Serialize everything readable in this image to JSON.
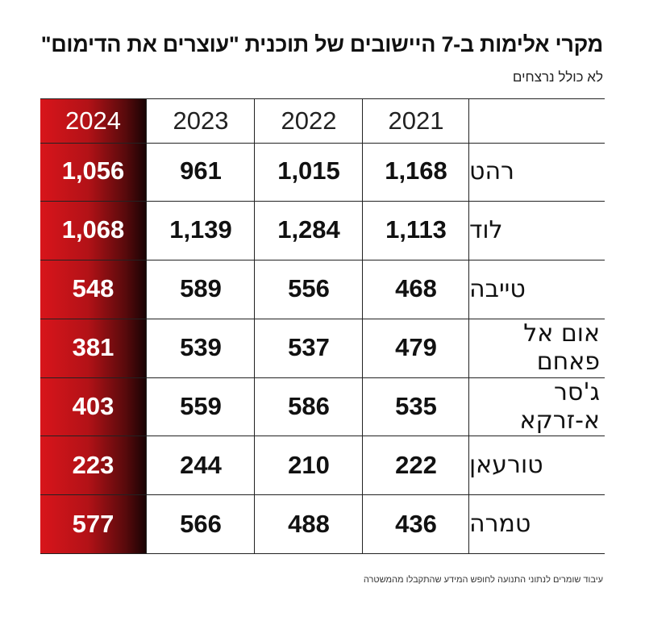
{
  "title": "מקרי אלימות ב-7 היישובים של תוכנית \"עוצרים את הדימום\"",
  "subtitle": "לא כולל נרצחים",
  "source": "עיבוד שומרים לנתוני התנועה לחופש המידע שהתקבלו מהמשטרה",
  "colors": {
    "highlight_column": "#c4161c",
    "text": "#111111",
    "lines": "#222222"
  },
  "chart_data": {
    "type": "table",
    "columns": [
      "2021",
      "2022",
      "2023",
      "2024"
    ],
    "highlighted_column": "2024",
    "rows": [
      {
        "name": "רהט",
        "values": [
          "1,168",
          "1,015",
          "961",
          "1,056"
        ]
      },
      {
        "name": "לוד",
        "values": [
          "1,113",
          "1,284",
          "1,139",
          "1,068"
        ]
      },
      {
        "name": "טייבה",
        "values": [
          "468",
          "556",
          "589",
          "548"
        ]
      },
      {
        "name": "אום אל פאחם",
        "values": [
          "479",
          "537",
          "539",
          "381"
        ]
      },
      {
        "name": "ג'סר א-זרקא",
        "values": [
          "535",
          "586",
          "559",
          "403"
        ]
      },
      {
        "name": "טורעאן",
        "values": [
          "222",
          "210",
          "244",
          "223"
        ]
      },
      {
        "name": "טמרה",
        "values": [
          "436",
          "488",
          "566",
          "577"
        ]
      }
    ]
  }
}
